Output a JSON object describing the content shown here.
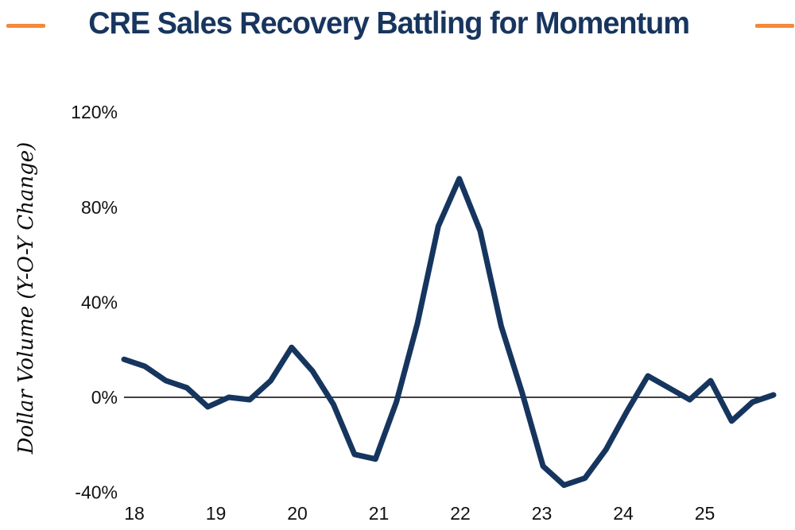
{
  "header": {
    "title": "CRE Sales Recovery Battling for Momentum",
    "title_color": "#17355e",
    "accent_color": "#f5883a"
  },
  "chart_data": {
    "type": "line",
    "title": "CRE Sales Recovery Battling for Momentum",
    "ylabel": "Dollar Volume (Y-O-Y Change)",
    "xlabel": "",
    "unit": "%",
    "ylim": [
      -40,
      120
    ],
    "grid": false,
    "legend": "none",
    "zero_line": true,
    "y_ticks": [
      120,
      80,
      40,
      0,
      -40
    ],
    "y_tick_labels": [
      "120%",
      "80%",
      "40%",
      "0%",
      "-40%"
    ],
    "x_tick_labels": [
      "18",
      "19",
      "20",
      "21",
      "22",
      "23",
      "24",
      "25"
    ],
    "series": [
      {
        "name": "Dollar Volume (Y-O-Y Change)",
        "color": "#16355e",
        "x": [
          "2018 Q1",
          "2018 Q2",
          "2018 Q3",
          "2018 Q4",
          "2019 Q1",
          "2019 Q2",
          "2019 Q3",
          "2019 Q4",
          "2020 Q1",
          "2020 Q2",
          "2020 Q3",
          "2020 Q4",
          "2021 Q1",
          "2021 Q2",
          "2021 Q3",
          "2021 Q4",
          "2022 Q1",
          "2022 Q2",
          "2022 Q3",
          "2022 Q4",
          "2023 Q1",
          "2023 Q2",
          "2023 Q3",
          "2023 Q4",
          "2024 Q1",
          "2024 Q2",
          "2024 Q3",
          "2024 Q4",
          "2025 Q1",
          "2025 Q2",
          "2025 Q3",
          "2025 Q4"
        ],
        "values": [
          16,
          13,
          7,
          4,
          -4,
          0,
          -1,
          7,
          21,
          11,
          -3,
          -24,
          -26,
          -2,
          31,
          72,
          92,
          70,
          30,
          2,
          -29,
          -37,
          -34,
          -22,
          -6,
          9,
          4,
          -1,
          7,
          -10,
          -2,
          1
        ]
      }
    ]
  }
}
